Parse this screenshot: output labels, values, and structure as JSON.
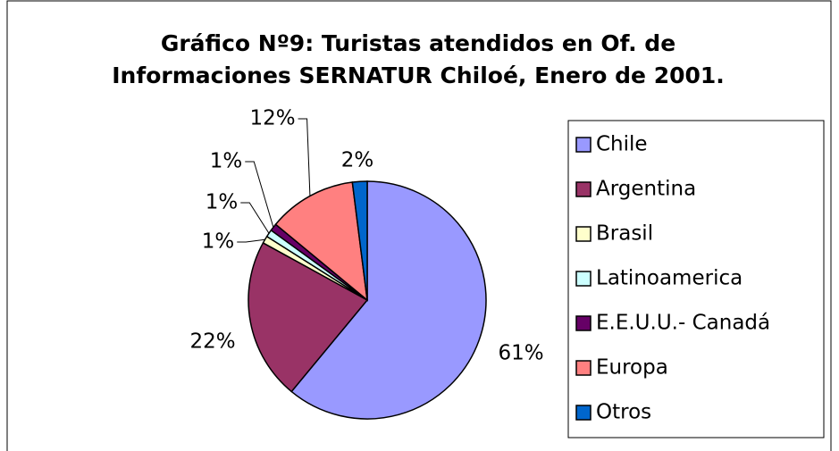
{
  "chart_data": {
    "type": "pie",
    "title": "Gráfico Nº9: Turistas atendidos en Of. de Informaciones SERNATUR Chiloé, Enero de 2001.",
    "categories": [
      "Chile",
      "Argentina",
      "Brasil",
      "Latinoamerica",
      "E.E.U.U.- Canadá",
      "Europa",
      "Otros"
    ],
    "values": [
      61,
      22,
      1,
      1,
      1,
      12,
      2
    ],
    "value_labels": [
      "61%",
      "22%",
      "1%",
      "1%",
      "1%",
      "12%",
      "2%"
    ],
    "colors": [
      "#9999ff",
      "#993366",
      "#ffffcc",
      "#ccffff",
      "#660066",
      "#ff8080",
      "#0066cc"
    ],
    "legend": "right"
  }
}
